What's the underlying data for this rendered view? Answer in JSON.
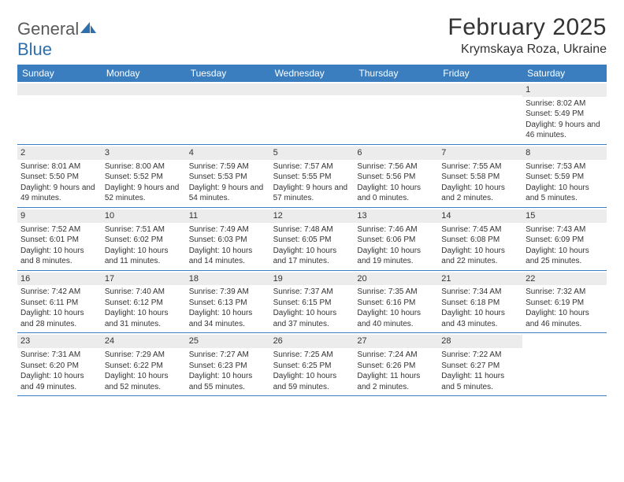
{
  "brand": {
    "part1": "General",
    "part2": "Blue"
  },
  "title": "February 2025",
  "location": "Krymskaya Roza, Ukraine",
  "colors": {
    "header_bg": "#3a7ebf",
    "header_text": "#ffffff",
    "daynum_bg": "#ececec",
    "rule": "#3a7ebf",
    "text": "#333333",
    "brand_gray": "#5a5a5a",
    "brand_blue": "#2f6fad"
  },
  "days_of_week": [
    "Sunday",
    "Monday",
    "Tuesday",
    "Wednesday",
    "Thursday",
    "Friday",
    "Saturday"
  ],
  "weeks": [
    [
      null,
      null,
      null,
      null,
      null,
      null,
      {
        "n": "1",
        "sunrise": "Sunrise: 8:02 AM",
        "sunset": "Sunset: 5:49 PM",
        "daylight": "Daylight: 9 hours and 46 minutes."
      }
    ],
    [
      {
        "n": "2",
        "sunrise": "Sunrise: 8:01 AM",
        "sunset": "Sunset: 5:50 PM",
        "daylight": "Daylight: 9 hours and 49 minutes."
      },
      {
        "n": "3",
        "sunrise": "Sunrise: 8:00 AM",
        "sunset": "Sunset: 5:52 PM",
        "daylight": "Daylight: 9 hours and 52 minutes."
      },
      {
        "n": "4",
        "sunrise": "Sunrise: 7:59 AM",
        "sunset": "Sunset: 5:53 PM",
        "daylight": "Daylight: 9 hours and 54 minutes."
      },
      {
        "n": "5",
        "sunrise": "Sunrise: 7:57 AM",
        "sunset": "Sunset: 5:55 PM",
        "daylight": "Daylight: 9 hours and 57 minutes."
      },
      {
        "n": "6",
        "sunrise": "Sunrise: 7:56 AM",
        "sunset": "Sunset: 5:56 PM",
        "daylight": "Daylight: 10 hours and 0 minutes."
      },
      {
        "n": "7",
        "sunrise": "Sunrise: 7:55 AM",
        "sunset": "Sunset: 5:58 PM",
        "daylight": "Daylight: 10 hours and 2 minutes."
      },
      {
        "n": "8",
        "sunrise": "Sunrise: 7:53 AM",
        "sunset": "Sunset: 5:59 PM",
        "daylight": "Daylight: 10 hours and 5 minutes."
      }
    ],
    [
      {
        "n": "9",
        "sunrise": "Sunrise: 7:52 AM",
        "sunset": "Sunset: 6:01 PM",
        "daylight": "Daylight: 10 hours and 8 minutes."
      },
      {
        "n": "10",
        "sunrise": "Sunrise: 7:51 AM",
        "sunset": "Sunset: 6:02 PM",
        "daylight": "Daylight: 10 hours and 11 minutes."
      },
      {
        "n": "11",
        "sunrise": "Sunrise: 7:49 AM",
        "sunset": "Sunset: 6:03 PM",
        "daylight": "Daylight: 10 hours and 14 minutes."
      },
      {
        "n": "12",
        "sunrise": "Sunrise: 7:48 AM",
        "sunset": "Sunset: 6:05 PM",
        "daylight": "Daylight: 10 hours and 17 minutes."
      },
      {
        "n": "13",
        "sunrise": "Sunrise: 7:46 AM",
        "sunset": "Sunset: 6:06 PM",
        "daylight": "Daylight: 10 hours and 19 minutes."
      },
      {
        "n": "14",
        "sunrise": "Sunrise: 7:45 AM",
        "sunset": "Sunset: 6:08 PM",
        "daylight": "Daylight: 10 hours and 22 minutes."
      },
      {
        "n": "15",
        "sunrise": "Sunrise: 7:43 AM",
        "sunset": "Sunset: 6:09 PM",
        "daylight": "Daylight: 10 hours and 25 minutes."
      }
    ],
    [
      {
        "n": "16",
        "sunrise": "Sunrise: 7:42 AM",
        "sunset": "Sunset: 6:11 PM",
        "daylight": "Daylight: 10 hours and 28 minutes."
      },
      {
        "n": "17",
        "sunrise": "Sunrise: 7:40 AM",
        "sunset": "Sunset: 6:12 PM",
        "daylight": "Daylight: 10 hours and 31 minutes."
      },
      {
        "n": "18",
        "sunrise": "Sunrise: 7:39 AM",
        "sunset": "Sunset: 6:13 PM",
        "daylight": "Daylight: 10 hours and 34 minutes."
      },
      {
        "n": "19",
        "sunrise": "Sunrise: 7:37 AM",
        "sunset": "Sunset: 6:15 PM",
        "daylight": "Daylight: 10 hours and 37 minutes."
      },
      {
        "n": "20",
        "sunrise": "Sunrise: 7:35 AM",
        "sunset": "Sunset: 6:16 PM",
        "daylight": "Daylight: 10 hours and 40 minutes."
      },
      {
        "n": "21",
        "sunrise": "Sunrise: 7:34 AM",
        "sunset": "Sunset: 6:18 PM",
        "daylight": "Daylight: 10 hours and 43 minutes."
      },
      {
        "n": "22",
        "sunrise": "Sunrise: 7:32 AM",
        "sunset": "Sunset: 6:19 PM",
        "daylight": "Daylight: 10 hours and 46 minutes."
      }
    ],
    [
      {
        "n": "23",
        "sunrise": "Sunrise: 7:31 AM",
        "sunset": "Sunset: 6:20 PM",
        "daylight": "Daylight: 10 hours and 49 minutes."
      },
      {
        "n": "24",
        "sunrise": "Sunrise: 7:29 AM",
        "sunset": "Sunset: 6:22 PM",
        "daylight": "Daylight: 10 hours and 52 minutes."
      },
      {
        "n": "25",
        "sunrise": "Sunrise: 7:27 AM",
        "sunset": "Sunset: 6:23 PM",
        "daylight": "Daylight: 10 hours and 55 minutes."
      },
      {
        "n": "26",
        "sunrise": "Sunrise: 7:25 AM",
        "sunset": "Sunset: 6:25 PM",
        "daylight": "Daylight: 10 hours and 59 minutes."
      },
      {
        "n": "27",
        "sunrise": "Sunrise: 7:24 AM",
        "sunset": "Sunset: 6:26 PM",
        "daylight": "Daylight: 11 hours and 2 minutes."
      },
      {
        "n": "28",
        "sunrise": "Sunrise: 7:22 AM",
        "sunset": "Sunset: 6:27 PM",
        "daylight": "Daylight: 11 hours and 5 minutes."
      },
      null
    ]
  ]
}
